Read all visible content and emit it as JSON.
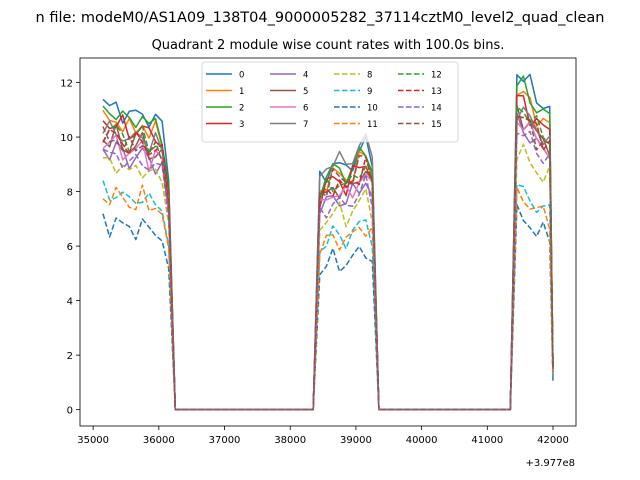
{
  "figure": {
    "suptitle": "n file: modeM0/AS1A09_138T04_9000005282_37114cztM0_level2_quad_clean",
    "offset_label": "+3.977e8"
  },
  "chart_data": {
    "type": "line",
    "title": "Quadrant 2 module wise count rates with 100.0s bins.",
    "xlabel": "",
    "ylabel": "",
    "x_offset": 397700000,
    "xlim": [
      34800,
      42350
    ],
    "ylim": [
      -0.6,
      12.9
    ],
    "xticks": [
      35000,
      36000,
      37000,
      38000,
      39000,
      40000,
      41000,
      42000
    ],
    "yticks": [
      0,
      2,
      4,
      6,
      8,
      10,
      12
    ],
    "grid": false,
    "legend": {
      "location": "top-center",
      "columns": 4
    },
    "segments": [
      {
        "x0": 35150,
        "x1": 36050,
        "template": [
          1.0,
          0.985,
          1.0,
          0.975,
          0.955,
          0.965,
          0.985,
          0.94,
          0.95,
          0.925
        ]
      },
      {
        "x0": 38450,
        "x1": 39250,
        "template": [
          0.86,
          0.9,
          0.93,
          0.92,
          0.905,
          0.94,
          0.975,
          1.0,
          0.93
        ]
      },
      {
        "x0": 41450,
        "x1": 41950,
        "template": [
          1.0,
          0.985,
          0.955,
          0.925,
          0.905,
          0.89
        ]
      }
    ],
    "drop_points": [
      36150,
      36250,
      38350,
      39350,
      41350,
      42000
    ],
    "series": [
      {
        "name": "0",
        "color": "#1f77b4",
        "dash": "solid",
        "levels": [
          11.2,
          9.7,
          12.4
        ],
        "end": 1.2
      },
      {
        "name": "1",
        "color": "#ff7f0e",
        "dash": "solid",
        "levels": [
          10.7,
          9.3,
          11.7
        ],
        "end": 1.5
      },
      {
        "name": "2",
        "color": "#2ca02c",
        "dash": "solid",
        "levels": [
          11.0,
          9.5,
          12.0
        ],
        "end": 1.6
      },
      {
        "name": "3",
        "color": "#d62728",
        "dash": "solid",
        "levels": [
          10.6,
          9.1,
          11.4
        ],
        "end": 1.5
      },
      {
        "name": "4",
        "color": "#9467bd",
        "dash": "solid",
        "levels": [
          9.6,
          8.4,
          10.5
        ],
        "end": 1.4
      },
      {
        "name": "5",
        "color": "#8c564b",
        "dash": "solid",
        "levels": [
          10.0,
          8.8,
          10.9
        ],
        "end": 1.5
      },
      {
        "name": "6",
        "color": "#e377c2",
        "dash": "solid",
        "levels": [
          9.8,
          8.6,
          10.7
        ],
        "end": 1.4
      },
      {
        "name": "7",
        "color": "#7f7f7f",
        "dash": "solid",
        "levels": [
          10.3,
          9.9,
          11.1
        ],
        "end": 1.5
      },
      {
        "name": "8",
        "color": "#bcbd22",
        "dash": "dashed",
        "levels": [
          9.1,
          7.8,
          9.5
        ],
        "end": 1.3
      },
      {
        "name": "9",
        "color": "#17becf",
        "dash": "dashed",
        "levels": [
          8.0,
          6.9,
          8.1
        ],
        "end": 1.2
      },
      {
        "name": "10",
        "color": "#1f77b4",
        "dash": "dashed",
        "levels": [
          6.9,
          5.9,
          7.1
        ],
        "end": 1.0
      },
      {
        "name": "11",
        "color": "#ff7f0e",
        "dash": "dashed",
        "levels": [
          7.9,
          6.8,
          7.9
        ],
        "end": 1.2
      },
      {
        "name": "12",
        "color": "#2ca02c",
        "dash": "dashed",
        "levels": [
          10.3,
          9.0,
          11.2
        ],
        "end": 1.5
      },
      {
        "name": "13",
        "color": "#d62728",
        "dash": "dashed",
        "levels": [
          10.1,
          8.9,
          11.0
        ],
        "end": 1.5
      },
      {
        "name": "14",
        "color": "#9467bd",
        "dash": "dashed",
        "levels": [
          9.4,
          8.2,
          10.3
        ],
        "end": 1.4
      },
      {
        "name": "15",
        "color": "#8c564b",
        "dash": "dashed",
        "levels": [
          10.0,
          9.2,
          10.8
        ],
        "end": 1.5
      }
    ]
  }
}
